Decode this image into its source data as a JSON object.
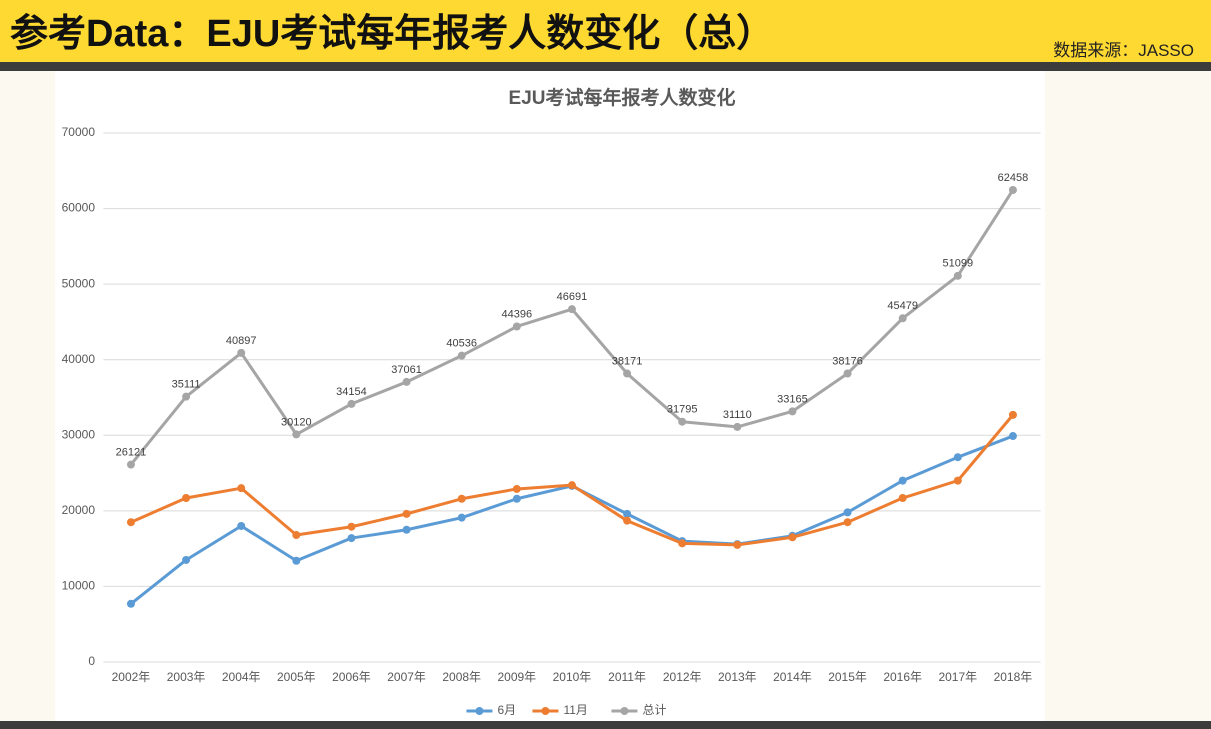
{
  "header": {
    "title": "参考Data：EJU考试每年报考人数变化（总）",
    "source": "数据来源：JASSO"
  },
  "chart_data": {
    "type": "line",
    "title": "EJU考试每年报考人数变化",
    "categories": [
      "2002年",
      "2003年",
      "2004年",
      "2005年",
      "2006年",
      "2007年",
      "2008年",
      "2009年",
      "2010年",
      "2011年",
      "2012年",
      "2013年",
      "2014年",
      "2015年",
      "2016年",
      "2017年",
      "2018年"
    ],
    "series": [
      {
        "name": "6月",
        "color": "#5b9bd5",
        "values": [
          7700,
          13500,
          18000,
          13400,
          16400,
          17500,
          19100,
          21600,
          23300,
          19600,
          16000,
          15600,
          16700,
          19800,
          24000,
          27100,
          29900
        ]
      },
      {
        "name": "11月",
        "color": "#ed7d31",
        "values": [
          18500,
          21700,
          23000,
          16800,
          17900,
          19600,
          21600,
          22900,
          23400,
          18700,
          15700,
          15500,
          16500,
          18500,
          21700,
          24000,
          32700
        ]
      },
      {
        "name": "总计",
        "color": "#a5a5a5",
        "values": [
          26121,
          35111,
          40897,
          30120,
          34154,
          37061,
          40536,
          44396,
          46691,
          38171,
          31795,
          31110,
          33165,
          38176,
          45479,
          51099,
          62458
        ],
        "data_labels": true
      }
    ],
    "ylim": [
      0,
      70000
    ],
    "yticks": [
      0,
      10000,
      20000,
      30000,
      40000,
      50000,
      60000,
      70000
    ],
    "grid": true,
    "legend": "bottom"
  }
}
